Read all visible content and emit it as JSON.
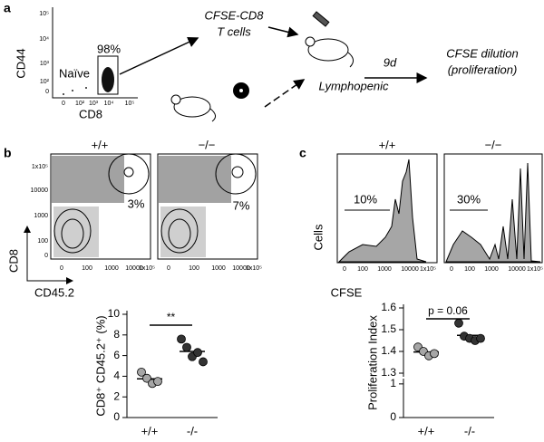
{
  "panel_a": {
    "label": "a",
    "y_ticks": [
      "10⁵",
      "10⁴",
      "10³",
      "10²",
      "0"
    ],
    "x_ticks": [
      "0",
      "10²",
      "10³",
      "10⁴",
      "10⁵"
    ],
    "gate_label": "Naïve",
    "gate_percent": "98%",
    "y_axis": "CD44",
    "x_axis": "CD8",
    "cells_line1": "CFSE-CD8",
    "cells_line2": "T cells",
    "host": "Lymphopenic",
    "time": "9d",
    "readout_line1": "CFSE dilution",
    "readout_line2": "(proliferation)"
  },
  "panel_b": {
    "label": "b",
    "groups": [
      "+/+",
      "−/−"
    ],
    "y_ticks": [
      "1x10⁵",
      "10000",
      "1000",
      "100",
      "0"
    ],
    "x_ticks": [
      "0",
      "100",
      "1000",
      "10000",
      "1x10⁵"
    ],
    "percents": [
      "3%",
      "7%"
    ],
    "y_axis": "CD8",
    "x_axis": "CD45.2"
  },
  "panel_c": {
    "label": "c",
    "groups": [
      "+/+",
      "−/−"
    ],
    "percents": [
      "10%",
      "30%"
    ],
    "x_ticks": [
      "0",
      "100",
      "1000",
      "10000",
      "1x10⁵"
    ],
    "y_axis": "Cells",
    "x_axis": "CFSE"
  },
  "chart_data": [
    {
      "type": "strip",
      "ylabel": "CD8⁺ CD45.2⁺ (%)",
      "categories": [
        "+/+",
        "-/-"
      ],
      "values": [
        [
          4.4,
          3.8,
          3.3,
          3.5
        ],
        [
          7.6,
          6.8,
          5.9,
          6.3,
          5.4
        ]
      ],
      "colors": [
        "#a6a6a6",
        "#333333"
      ],
      "ylim": [
        0,
        10
      ],
      "yticks": [
        0,
        2,
        4,
        6,
        8,
        10
      ],
      "annotation": "**"
    },
    {
      "type": "strip",
      "ylabel": "Proliferation Index",
      "categories": [
        "+/+",
        "-/-"
      ],
      "values": [
        [
          1.42,
          1.4,
          1.38,
          1.39
        ],
        [
          1.53,
          1.47,
          1.46,
          1.45,
          1.46
        ]
      ],
      "colors": [
        "#a6a6a6",
        "#333333"
      ],
      "ylim": [
        1.3,
        1.6
      ],
      "yticks": [
        1.3,
        1.4,
        1.5,
        1.6
      ],
      "ylim_lower": [
        0,
        1.05
      ],
      "yticks_lower": [
        0,
        1
      ],
      "annotation": "p = 0.06"
    }
  ]
}
